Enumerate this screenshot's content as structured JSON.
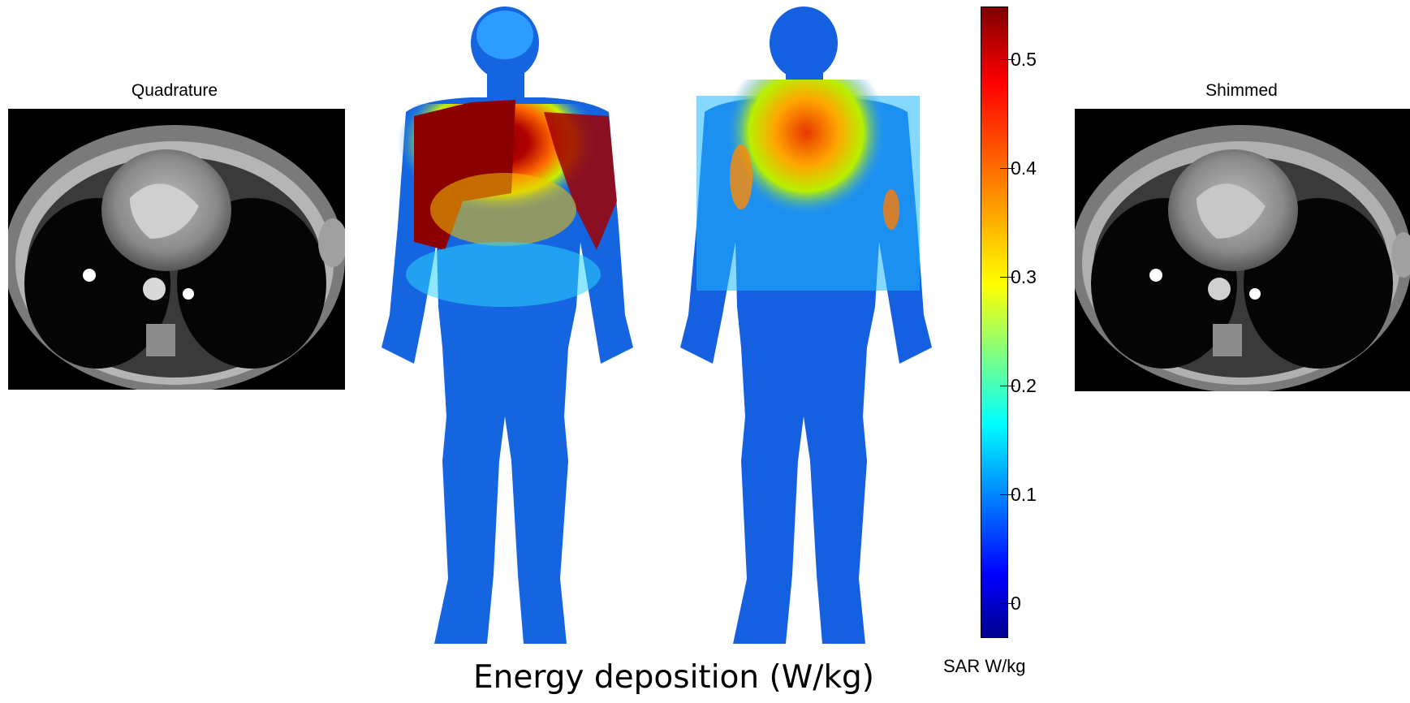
{
  "left_panel": {
    "title": "Quadrature"
  },
  "right_panel": {
    "title": "Shimmed"
  },
  "colorbar": {
    "label": "SAR W/kg",
    "ticks": [
      "0.5",
      "0.4",
      "0.3",
      "0.2",
      "0.1",
      "0"
    ],
    "tick_values": [
      0.5,
      0.4,
      0.3,
      0.2,
      0.1,
      0
    ],
    "range": [
      -0.03,
      0.55
    ],
    "colormap": "jet"
  },
  "caption": "Energy deposition (W/kg)"
}
